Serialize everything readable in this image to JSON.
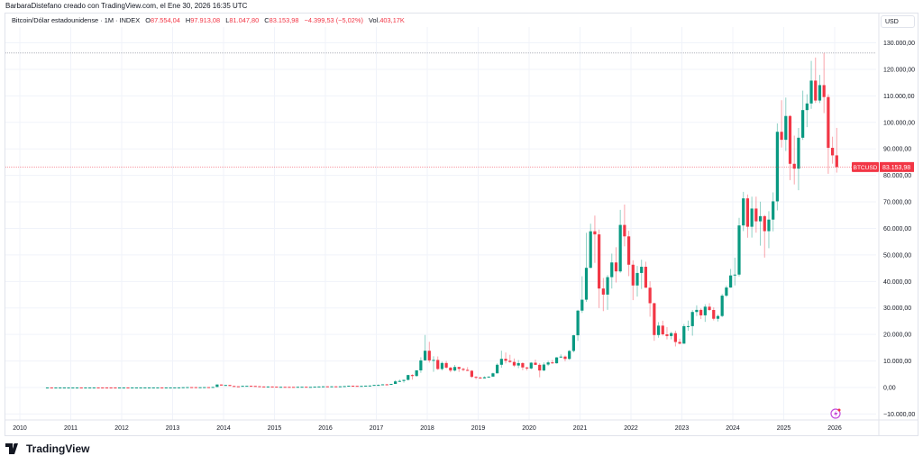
{
  "credit": "BarbaraDistefano creado con TradingView.com, el Ene 30, 2026 16:35 UTC",
  "legend": {
    "symbol": "Bitcoin/Dólar estadounidense · 1M · INDEX",
    "o_label": "O",
    "o": "87.554,04",
    "h_label": "H",
    "h": "97.913,08",
    "l_label": "L",
    "l": "81.047,80",
    "c_label": "C",
    "c": "83.153,98",
    "change": "−4.399,53 (−5,02%)",
    "vol_label": "Vol.",
    "vol": "403,17K"
  },
  "currency": "USD",
  "price_tag": {
    "symbol": "BTCUSD",
    "value": "83.153,98"
  },
  "footer": {
    "brand": "TradingView"
  },
  "colors": {
    "up": "#089981",
    "down": "#f23645",
    "grid": "#f0f3fa",
    "text": "#131722"
  },
  "icons": {
    "event": "lightning-icon"
  },
  "chart_data": {
    "type": "candlestick",
    "interval": "1M",
    "ylim": [
      -10000,
      135000
    ],
    "grid": true,
    "y_ticks": [
      {
        "v": 130000,
        "label": "130.000,00"
      },
      {
        "v": 120000,
        "label": "120.000,00"
      },
      {
        "v": 110000,
        "label": "110.000,00"
      },
      {
        "v": 100000,
        "label": "100.000,00"
      },
      {
        "v": 90000,
        "label": "90.000,00"
      },
      {
        "v": 80000,
        "label": "80.000,00"
      },
      {
        "v": 70000,
        "label": "70.000,00"
      },
      {
        "v": 60000,
        "label": "60.000,00"
      },
      {
        "v": 50000,
        "label": "50.000,00"
      },
      {
        "v": 40000,
        "label": "40.000,00"
      },
      {
        "v": 30000,
        "label": "30.000,00"
      },
      {
        "v": 20000,
        "label": "20.000,00"
      },
      {
        "v": 10000,
        "label": "10.000,00"
      },
      {
        "v": 0,
        "label": "0,00"
      },
      {
        "v": -10000,
        "label": "−10.000,00"
      }
    ],
    "x_ticks": [
      "2010",
      "2011",
      "2012",
      "2013",
      "2014",
      "2015",
      "2016",
      "2017",
      "2018",
      "2019",
      "2020",
      "2021",
      "2022",
      "2023",
      "2024",
      "2025",
      "2026"
    ],
    "last_price": 83153.98,
    "high_line": 126200,
    "early_start": "2010-07",
    "early_closes": [
      0.07,
      0.06,
      0.06,
      0.19,
      0.21,
      0.3,
      0.5,
      0.9,
      0.8,
      3.5,
      8.7,
      16.1,
      13.4,
      8.2,
      5.1,
      3.2,
      3.0,
      4.7,
      5.5,
      4.9,
      4.9,
      5.0,
      5.1,
      6.7,
      9.3,
      10.2,
      12.4,
      11.2,
      12.6,
      13.5,
      20,
      33,
      93,
      139,
      129,
      97,
      106,
      135,
      133,
      204,
      1130,
      757,
      951,
      573,
      458,
      448,
      630,
      641,
      585,
      478,
      387,
      338,
      378,
      320,
      217,
      254,
      244,
      236,
      230,
      263,
      284,
      231,
      236,
      314,
      378,
      430,
      369,
      437,
      416,
      448,
      531,
      673,
      624,
      575,
      609,
      700,
      743,
      964
    ],
    "ohlc_start": "2017-01",
    "ohlc": [
      [
        964,
        1150,
        752,
        971
      ],
      [
        971,
        1210,
        920,
        1190
      ],
      [
        1190,
        1350,
        890,
        1080
      ],
      [
        1080,
        1350,
        1080,
        1348
      ],
      [
        1348,
        2760,
        1348,
        2300
      ],
      [
        2300,
        2980,
        2080,
        2480
      ],
      [
        2480,
        2920,
        1830,
        2875
      ],
      [
        2875,
        4760,
        2690,
        4703
      ],
      [
        4703,
        5000,
        2970,
        4338
      ],
      [
        4338,
        6470,
        4110,
        6468
      ],
      [
        6468,
        11400,
        5540,
        10233
      ],
      [
        10233,
        19800,
        10200,
        13860
      ],
      [
        13860,
        17250,
        9400,
        10221
      ],
      [
        10221,
        11790,
        5920,
        10397
      ],
      [
        10397,
        11720,
        6620,
        6973
      ],
      [
        6973,
        9770,
        6440,
        9240
      ],
      [
        9240,
        10020,
        7040,
        7500
      ],
      [
        7500,
        7780,
        5750,
        6404
      ],
      [
        6404,
        8500,
        6070,
        7730
      ],
      [
        7730,
        7750,
        5880,
        7033
      ],
      [
        7033,
        7410,
        6150,
        6635
      ],
      [
        6635,
        7680,
        6200,
        6317
      ],
      [
        6317,
        6560,
        3650,
        4017
      ],
      [
        4017,
        4240,
        3120,
        3742
      ],
      [
        3742,
        4110,
        3350,
        3457
      ],
      [
        3457,
        4200,
        3400,
        3854
      ],
      [
        3854,
        4150,
        3680,
        4105
      ],
      [
        4105,
        5600,
        4080,
        5350
      ],
      [
        5350,
        9100,
        5330,
        8574
      ],
      [
        8574,
        13880,
        7450,
        10817
      ],
      [
        10817,
        13200,
        9080,
        10085
      ],
      [
        10085,
        12330,
        9350,
        9630
      ],
      [
        9630,
        10950,
        7730,
        8293
      ],
      [
        8293,
        10350,
        7300,
        9199
      ],
      [
        9199,
        9510,
        6520,
        7569
      ],
      [
        7569,
        7750,
        6430,
        7193
      ],
      [
        7193,
        9580,
        6850,
        9350
      ],
      [
        9350,
        10520,
        8470,
        8543
      ],
      [
        8543,
        9190,
        3860,
        6424
      ],
      [
        6424,
        9460,
        6180,
        8658
      ],
      [
        8658,
        10070,
        8120,
        9454
      ],
      [
        9454,
        10380,
        8930,
        9137
      ],
      [
        9137,
        11450,
        9020,
        11351
      ],
      [
        11351,
        12480,
        11150,
        11655
      ],
      [
        11655,
        12080,
        9880,
        10776
      ],
      [
        10776,
        14100,
        10430,
        13797
      ],
      [
        13797,
        19860,
        13250,
        19700
      ],
      [
        19700,
        29300,
        17580,
        28990
      ],
      [
        28990,
        41950,
        28130,
        33114
      ],
      [
        33114,
        58350,
        32300,
        45137
      ],
      [
        45137,
        61780,
        45000,
        58918
      ],
      [
        58918,
        64850,
        47000,
        57750
      ],
      [
        57750,
        59600,
        30000,
        37332
      ],
      [
        37332,
        41330,
        28800,
        35040
      ],
      [
        35040,
        42400,
        29280,
        41626
      ],
      [
        41626,
        50500,
        37330,
        47166
      ],
      [
        47166,
        52920,
        39600,
        43790
      ],
      [
        43790,
        67000,
        43290,
        61318
      ],
      [
        61318,
        69000,
        53250,
        57005
      ],
      [
        57005,
        59100,
        42000,
        46306
      ],
      [
        46306,
        47990,
        32950,
        38483
      ],
      [
        38483,
        45850,
        34300,
        43193
      ],
      [
        43193,
        48200,
        37150,
        45538
      ],
      [
        45538,
        47450,
        37570,
        37644
      ],
      [
        37644,
        40050,
        26700,
        31792
      ],
      [
        31792,
        31990,
        17600,
        19785
      ],
      [
        19785,
        24670,
        18780,
        23336
      ],
      [
        23336,
        25210,
        19550,
        20050
      ],
      [
        20050,
        22800,
        18150,
        19423
      ],
      [
        19423,
        20990,
        18170,
        20495
      ],
      [
        20495,
        21450,
        15480,
        17168
      ],
      [
        17168,
        18400,
        16280,
        16547
      ],
      [
        16547,
        23960,
        16500,
        23139
      ],
      [
        23139,
        25250,
        21400,
        23147
      ],
      [
        23147,
        29190,
        19550,
        28478
      ],
      [
        28478,
        31000,
        26940,
        29268
      ],
      [
        29268,
        29820,
        25810,
        27219
      ],
      [
        27219,
        31390,
        24750,
        30477
      ],
      [
        30477,
        31800,
        28860,
        29232
      ],
      [
        29232,
        30200,
        25300,
        25931
      ],
      [
        25931,
        27500,
        24900,
        26962
      ],
      [
        26962,
        35280,
        26550,
        34639
      ],
      [
        34639,
        38420,
        34110,
        37712
      ],
      [
        37712,
        44700,
        37600,
        42265
      ],
      [
        42265,
        48970,
        38500,
        42580
      ],
      [
        42580,
        64000,
        41880,
        61130
      ],
      [
        61130,
        73800,
        59000,
        71333
      ],
      [
        71333,
        72800,
        56500,
        60636
      ],
      [
        60636,
        71980,
        56550,
        67491
      ],
      [
        67491,
        71990,
        58400,
        62678
      ],
      [
        62678,
        70080,
        53500,
        64628
      ],
      [
        64628,
        65100,
        49000,
        58969
      ],
      [
        58969,
        66500,
        52550,
        63327
      ],
      [
        63327,
        73600,
        58900,
        70215
      ],
      [
        70215,
        99600,
        66800,
        96449
      ],
      [
        96449,
        108350,
        90500,
        93429
      ],
      [
        93429,
        109350,
        89200,
        102405
      ],
      [
        102405,
        102750,
        78200,
        84373
      ],
      [
        84373,
        95000,
        76600,
        82548
      ],
      [
        82548,
        97900,
        74400,
        94207
      ],
      [
        94207,
        111980,
        93400,
        104638
      ],
      [
        104638,
        110600,
        98200,
        107135
      ],
      [
        107135,
        123200,
        105100,
        115758
      ],
      [
        115758,
        124460,
        107350,
        108236
      ],
      [
        108236,
        117900,
        107300,
        114056
      ],
      [
        114056,
        126200,
        103500,
        109556
      ],
      [
        109556,
        110600,
        80600,
        90394
      ],
      [
        90394,
        94600,
        84400,
        87554
      ],
      [
        87554.04,
        97913.08,
        81047.8,
        83153.98
      ]
    ]
  }
}
